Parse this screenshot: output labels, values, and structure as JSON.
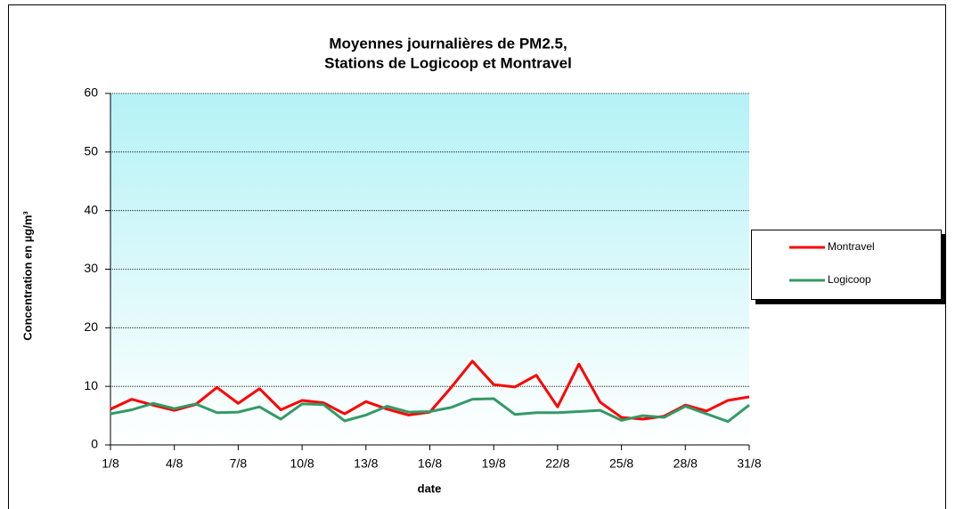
{
  "chart_data": {
    "type": "line",
    "title": [
      "Moyennes journalières de PM2.5,",
      "Stations de Logicoop et Montravel"
    ],
    "x_label": "date",
    "y_label": "Concentration en µg/m³",
    "categories": [
      "1/8",
      null,
      null,
      "4/8",
      null,
      null,
      "7/8",
      null,
      null,
      "10/8",
      null,
      null,
      "13/8",
      null,
      null,
      "16/8",
      null,
      null,
      "19/8",
      null,
      null,
      "22/8",
      null,
      null,
      "25/8",
      null,
      null,
      "28/8",
      null,
      null,
      "31/8"
    ],
    "series": [
      {
        "name": "Montravel",
        "color": "#ff0000",
        "values": [
          6.1,
          7.8,
          6.8,
          5.9,
          6.9,
          9.8,
          7.1,
          9.6,
          6.0,
          7.6,
          7.2,
          5.3,
          7.4,
          6.1,
          5.1,
          5.6,
          9.8,
          14.3,
          10.3,
          9.9,
          11.9,
          6.5,
          13.8,
          7.3,
          4.7,
          4.4,
          4.9,
          6.8,
          5.8,
          7.6,
          8.2
        ]
      },
      {
        "name": "Logicoop",
        "color": "#339966",
        "values": [
          5.3,
          6.0,
          7.1,
          6.2,
          7.0,
          5.5,
          5.6,
          6.5,
          4.4,
          7.0,
          6.9,
          4.1,
          5.1,
          6.6,
          5.6,
          5.7,
          6.4,
          7.8,
          7.9,
          5.2,
          5.5,
          5.5,
          5.7,
          5.9,
          4.2,
          5.0,
          4.7,
          6.6,
          5.3,
          4.0,
          6.8
        ]
      }
    ],
    "ylim": [
      0,
      60
    ],
    "yticks": [
      0,
      10,
      20,
      30,
      40,
      50,
      60
    ],
    "grid": true,
    "legend": "right"
  }
}
